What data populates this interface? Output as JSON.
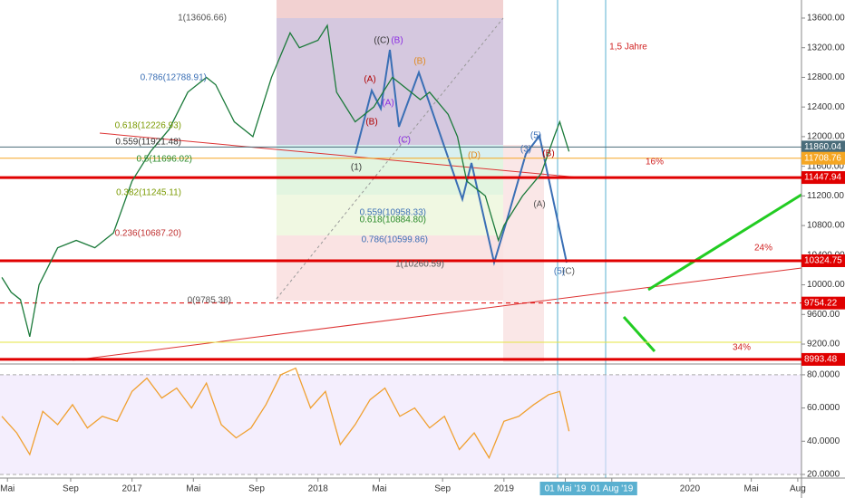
{
  "chart_data": {
    "type": "line",
    "xlim": [
      2016.29,
      2020.6
    ],
    "xticks": [
      {
        "value": 2016.33,
        "label": "Mai"
      },
      {
        "value": 2016.67,
        "label": "Sep"
      },
      {
        "value": 2017,
        "label": "2017"
      },
      {
        "value": 2017.33,
        "label": "Mai"
      },
      {
        "value": 2017.67,
        "label": "Sep"
      },
      {
        "value": 2018,
        "label": "2018"
      },
      {
        "value": 2018.33,
        "label": "Mai"
      },
      {
        "value": 2018.67,
        "label": "Sep"
      },
      {
        "value": 2019,
        "label": "2019"
      },
      {
        "value": 2019.33,
        "label": "01 Mai '19"
      },
      {
        "value": 2019.58,
        "label": "01 Aug '19"
      },
      {
        "value": 2020,
        "label": "2020"
      },
      {
        "value": 2020.33,
        "label": "Mai"
      },
      {
        "value": 2020.58,
        "label": "Aug"
      }
    ],
    "ylim": [
      8956,
      13844
    ],
    "yticks": [
      {
        "value": 13600,
        "label": "13600.00"
      },
      {
        "value": 13200,
        "label": "13200.00"
      },
      {
        "value": 12800,
        "label": "12800.00"
      },
      {
        "value": 12400,
        "label": "12400.00"
      },
      {
        "value": 12000,
        "label": "12000.00"
      },
      {
        "value": 11600,
        "label": "11600.00"
      },
      {
        "value": 11200,
        "label": "11200.00"
      },
      {
        "value": 10800,
        "label": "10800.00"
      },
      {
        "value": 10400,
        "label": "10400.00"
      },
      {
        "value": 10000,
        "label": "10000.00"
      },
      {
        "value": 9600,
        "label": "9600.00"
      },
      {
        "value": 9200,
        "label": "9200.00"
      }
    ],
    "series": [
      {
        "color": "#1b7a3a",
        "x": [
          2016.3,
          2016.35,
          2016.4,
          2016.45,
          2016.5,
          2016.6,
          2016.7,
          2016.8,
          2016.9,
          2017.0,
          2017.1,
          2017.2,
          2017.3,
          2017.4,
          2017.45,
          2017.55,
          2017.65,
          2017.75,
          2017.85,
          2017.9,
          2018.0,
          2018.05,
          2018.1,
          2018.2,
          2018.3,
          2018.4,
          2018.5,
          2018.55,
          2018.6,
          2018.7,
          2018.75,
          2018.8,
          2018.9,
          2018.97,
          2019.0,
          2019.1,
          2019.2,
          2019.27,
          2019.3,
          2019.35
        ],
        "values": [
          10100,
          9900,
          9800,
          9300,
          10000,
          10500,
          10600,
          10500,
          10700,
          11400,
          11800,
          12100,
          12600,
          12800,
          12700,
          12200,
          12000,
          12800,
          13400,
          13200,
          13300,
          13500,
          12600,
          12200,
          12400,
          12800,
          12600,
          12500,
          12600,
          12300,
          12000,
          11400,
          11200,
          10600,
          10800,
          11200,
          11500,
          12000,
          12200,
          11800
        ]
      }
    ],
    "levels": [
      {
        "value": 11860.04,
        "color": "#4a6c7a"
      },
      {
        "value": 11708.76,
        "color": "#f5a623"
      },
      {
        "value": 11447.94,
        "color": "#e00000"
      },
      {
        "value": 10324.75,
        "color": "#e00000"
      },
      {
        "value": 9754.22,
        "color": "#e00000"
      },
      {
        "value": 8993.48,
        "color": "#e00000"
      }
    ],
    "annotations": [
      "1(13606.66)",
      "0.786(12788.91)",
      "0.618(12226.93)",
      "0.559(11921.48)",
      "0.5(11696.02)",
      "0.382(11245.11)",
      "0.236(10687.20)",
      "0(9785.38)",
      "0.786(10599.86)",
      "0.559(10958.33)",
      "0.618(10884.80)",
      "1(10260.59)",
      "(1)",
      "(A)",
      "(B)",
      "((C)",
      "(B)",
      "(A)",
      "(C)",
      "(B)",
      "(D)",
      "(5)",
      "(3)",
      "(B)",
      "(A)",
      "(C)",
      "(5)",
      "1,5 Jahre",
      "16%",
      "24%",
      "34%"
    ],
    "rsi": {
      "color": "#f0a030",
      "ylim": [
        17.8,
        86.5
      ],
      "yticks": [
        {
          "value": 80,
          "label": "80.0000"
        },
        {
          "value": 60,
          "label": "60.0000"
        },
        {
          "value": 40,
          "label": "40.0000"
        },
        {
          "value": 20,
          "label": "20.0000"
        }
      ],
      "x": [
        2016.3,
        2016.38,
        2016.45,
        2016.52,
        2016.6,
        2016.68,
        2016.76,
        2016.84,
        2016.92,
        2017.0,
        2017.08,
        2017.16,
        2017.24,
        2017.32,
        2017.4,
        2017.48,
        2017.56,
        2017.64,
        2017.72,
        2017.8,
        2017.88,
        2017.96,
        2018.04,
        2018.12,
        2018.2,
        2018.28,
        2018.36,
        2018.44,
        2018.52,
        2018.6,
        2018.68,
        2018.76,
        2018.84,
        2018.92,
        2019.0,
        2019.08,
        2019.16,
        2019.24,
        2019.3,
        2019.35
      ],
      "values": [
        55,
        45,
        32,
        58,
        50,
        62,
        48,
        55,
        52,
        70,
        78,
        66,
        72,
        60,
        75,
        50,
        42,
        48,
        62,
        80,
        84,
        60,
        70,
        38,
        50,
        65,
        72,
        55,
        60,
        48,
        55,
        35,
        45,
        30,
        52,
        55,
        62,
        68,
        70,
        46
      ]
    }
  }
}
